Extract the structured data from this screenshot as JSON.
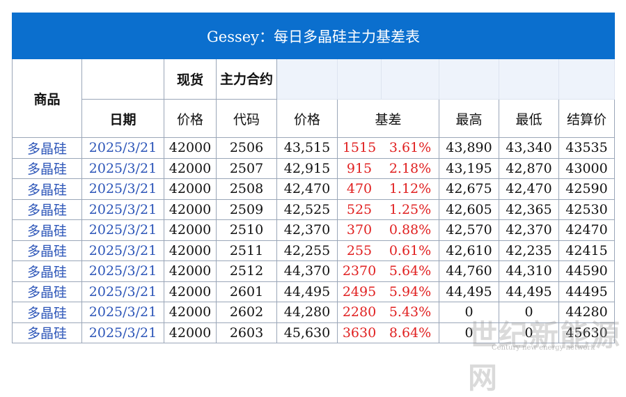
{
  "title": "Gessey：每日多晶硅主力基差表",
  "header": {
    "product": "商品",
    "spot": "现货",
    "main_contract": "主力合约",
    "date": "日期",
    "spot_price": "价格",
    "code": "代码",
    "price": "价格",
    "basis": "基差",
    "high": "最高",
    "low": "最低",
    "settle": "结算价"
  },
  "table": {
    "rows": [
      [
        "多晶硅",
        "2025/3/21",
        "42000",
        "2506",
        "43,515",
        "1515",
        "3.61%",
        "43,890",
        "43,340",
        "43535"
      ],
      [
        "多晶硅",
        "2025/3/21",
        "42000",
        "2507",
        "42,915",
        "915",
        "2.18%",
        "43,195",
        "42,870",
        "43000"
      ],
      [
        "多晶硅",
        "2025/3/21",
        "42000",
        "2508",
        "42,470",
        "470",
        "1.12%",
        "42,675",
        "42,470",
        "42590"
      ],
      [
        "多晶硅",
        "2025/3/21",
        "42000",
        "2509",
        "42,525",
        "525",
        "1.25%",
        "42,605",
        "42,365",
        "42530"
      ],
      [
        "多晶硅",
        "2025/3/21",
        "42000",
        "2510",
        "42,370",
        "370",
        "0.88%",
        "42,570",
        "42,370",
        "42470"
      ],
      [
        "多晶硅",
        "2025/3/21",
        "42000",
        "2511",
        "42,255",
        "255",
        "0.61%",
        "42,610",
        "42,235",
        "42415"
      ],
      [
        "多晶硅",
        "2025/3/21",
        "42000",
        "2512",
        "44,370",
        "2370",
        "5.64%",
        "44,760",
        "44,310",
        "44590"
      ],
      [
        "多晶硅",
        "2025/3/21",
        "42000",
        "2601",
        "44,495",
        "2495",
        "5.94%",
        "44,495",
        "44,495",
        "44495"
      ],
      [
        "多晶硅",
        "2025/3/21",
        "42000",
        "2602",
        "44,280",
        "2280",
        "5.43%",
        "0",
        "0",
        "44280"
      ],
      [
        "多晶硅",
        "2025/3/21",
        "42000",
        "2603",
        "45,630",
        "3630",
        "8.64%",
        "0",
        "0",
        "45630"
      ]
    ]
  },
  "watermark": {
    "name": "世纪新能源网",
    "english": "Century new energy network"
  }
}
